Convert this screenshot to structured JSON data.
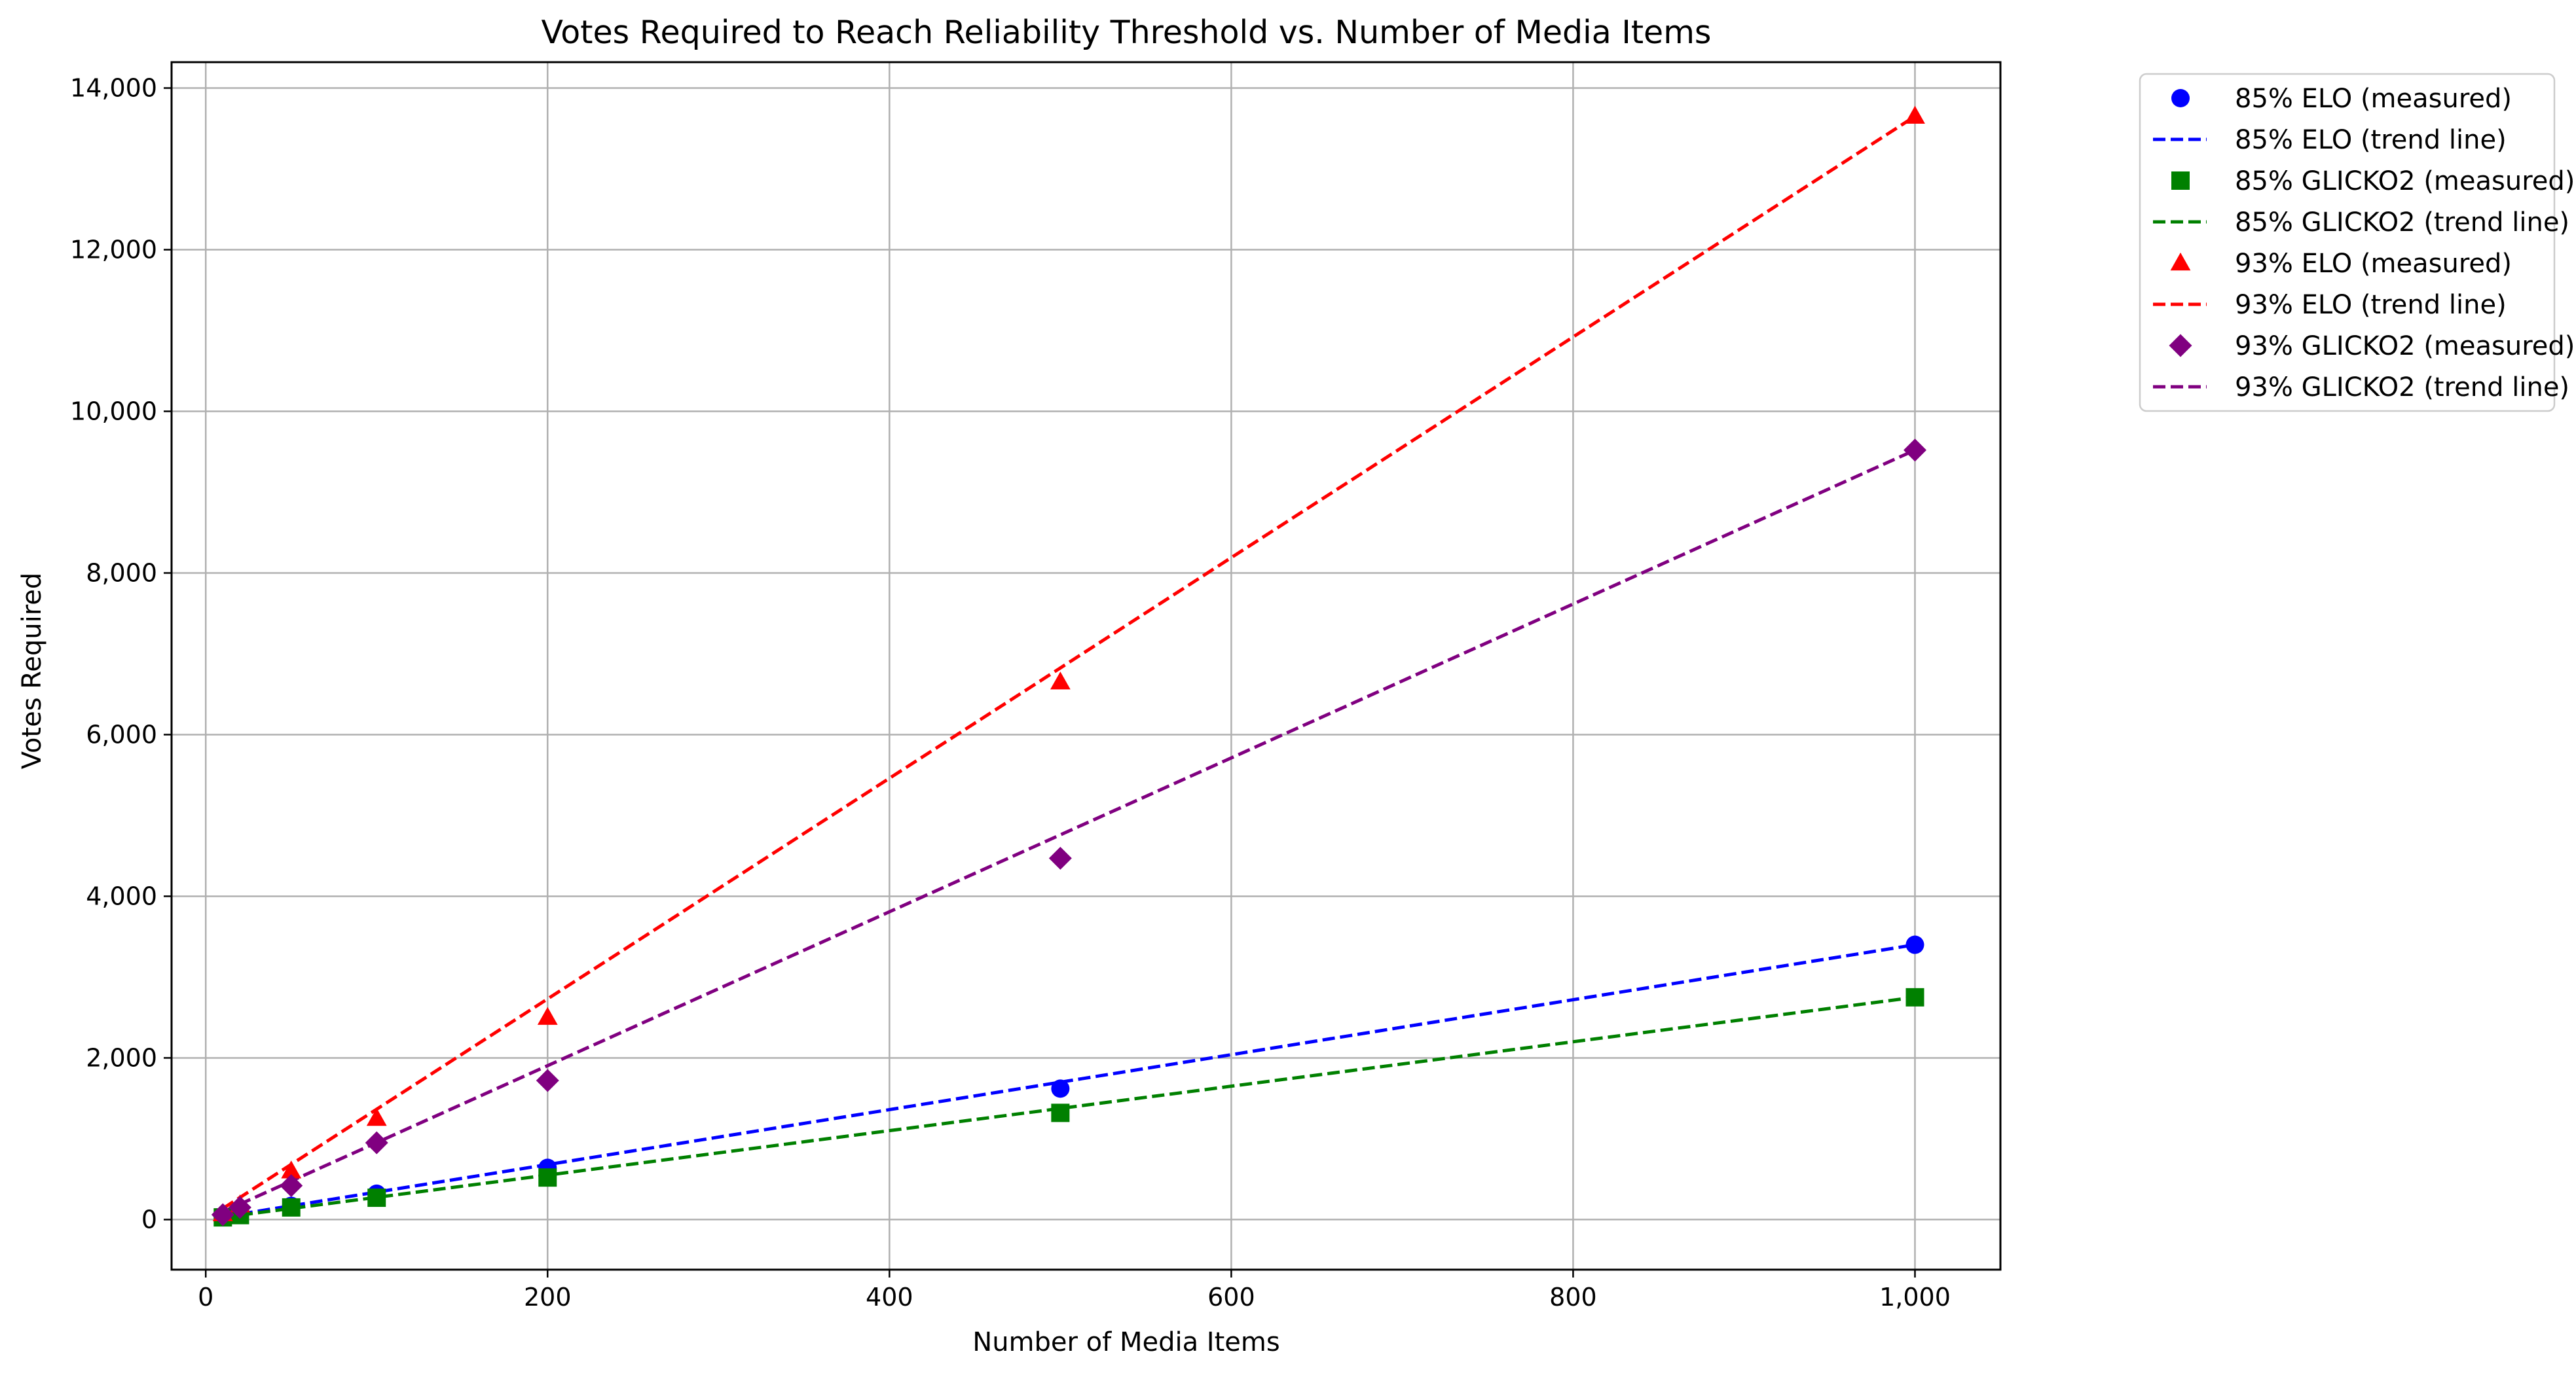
{
  "chart_data": {
    "type": "line",
    "title": "Votes Required to Reach Reliability Threshold vs. Number of Media Items",
    "xlabel": "Number of Media Items",
    "ylabel": "Votes Required",
    "xlim": [
      -20,
      1050
    ],
    "ylim": [
      -620,
      14320
    ],
    "xticks": [
      0,
      200,
      400,
      600,
      800,
      1000
    ],
    "xtick_labels": [
      "0",
      "200",
      "400",
      "600",
      "800",
      "1,000"
    ],
    "yticks": [
      0,
      2000,
      4000,
      6000,
      8000,
      10000,
      12000,
      14000
    ],
    "ytick_labels": [
      "0",
      "2,000",
      "4,000",
      "6,000",
      "8,000",
      "10,000",
      "12,000",
      "14,000"
    ],
    "grid": true,
    "legend_position": "outside-right-top",
    "x": [
      10,
      20,
      50,
      100,
      200,
      500,
      1000
    ],
    "series": [
      {
        "label": "85% ELO",
        "color": "#0000ff",
        "marker": "circle",
        "measured_name": "85% ELO (measured)",
        "trend_name": "85% ELO (trend line)",
        "values": [
          34,
          68,
          170,
          320,
          640,
          1620,
          3400
        ],
        "trend": [
          34,
          68,
          170,
          340,
          680,
          1700,
          3400
        ]
      },
      {
        "label": "85% GLICKO2",
        "color": "#008000",
        "marker": "square",
        "measured_name": "85% GLICKO2 (measured)",
        "trend_name": "85% GLICKO2 (trend line)",
        "values": [
          27,
          55,
          150,
          270,
          520,
          1320,
          2750
        ],
        "trend": [
          27.5,
          55,
          137.5,
          275,
          550,
          1375,
          2750
        ]
      },
      {
        "label": "93% ELO",
        "color": "#ff0000",
        "marker": "triangle",
        "measured_name": "93% ELO (measured)",
        "trend_name": "93% ELO (trend line)",
        "values": [
          70,
          180,
          600,
          1250,
          2500,
          6650,
          13650
        ],
        "trend": [
          136.5,
          273,
          682.5,
          1365,
          2730,
          6825,
          13650
        ]
      },
      {
        "label": "93% GLICKO2",
        "color": "#800080",
        "marker": "diamond",
        "measured_name": "93% GLICKO2 (measured)",
        "trend_name": "93% GLICKO2 (trend line)",
        "values": [
          60,
          150,
          420,
          950,
          1720,
          4470,
          9520
        ],
        "trend": [
          95.2,
          190.4,
          476,
          952,
          1904,
          4760,
          9520
        ]
      }
    ]
  }
}
